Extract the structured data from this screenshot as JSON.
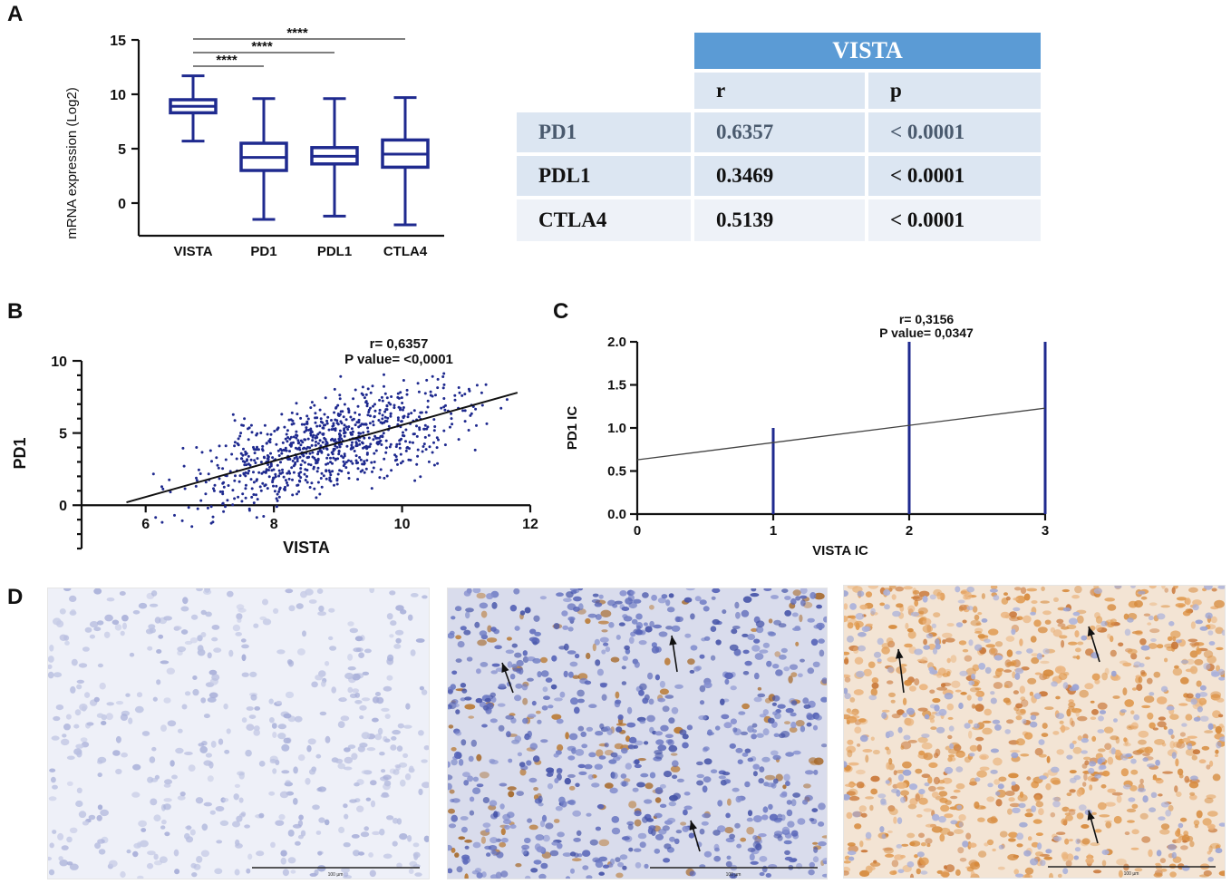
{
  "panels": {
    "a": "A",
    "b": "B",
    "c": "C",
    "d": "D"
  },
  "stats": {
    "sig_label": "****",
    "comparisons": [
      {
        "from": "VISTA",
        "to": "PD1"
      },
      {
        "from": "VISTA",
        "to": "PDL1"
      },
      {
        "from": "VISTA",
        "to": "CTLA4"
      }
    ]
  },
  "table": {
    "header": "VISTA",
    "col_r": "r",
    "col_p": "p",
    "rows": [
      {
        "name": "PD1",
        "r": "0.6357",
        "p": "< 0.0001"
      },
      {
        "name": "PDL1",
        "r": "0.3469",
        "p": "< 0.0001"
      },
      {
        "name": "CTLA4",
        "r": "0.5139",
        "p": "< 0.0001"
      }
    ]
  },
  "colors": {
    "box": "#1f2a8f",
    "dot": "#1f2a8f",
    "header_blue": "#5b9bd5",
    "row_blue": "#dce6f2"
  },
  "chart_data": [
    {
      "type": "box",
      "panel": "A",
      "ylabel": "mRNA expression (Log2)",
      "categories": [
        "VISTA",
        "PD1",
        "PDL1",
        "CTLA4"
      ],
      "ylim": [
        -3,
        15
      ],
      "yticks": [
        0,
        5,
        10,
        15
      ],
      "boxes": [
        {
          "min": 5.7,
          "q1": 8.3,
          "median": 8.9,
          "q3": 9.5,
          "max": 11.7
        },
        {
          "min": -1.5,
          "q1": 3.0,
          "median": 4.2,
          "q3": 5.5,
          "max": 9.6
        },
        {
          "min": -1.2,
          "q1": 3.6,
          "median": 4.3,
          "q3": 5.1,
          "max": 9.6
        },
        {
          "min": -2.0,
          "q1": 3.3,
          "median": 4.5,
          "q3": 5.8,
          "max": 9.7
        }
      ]
    },
    {
      "type": "scatter",
      "panel": "B",
      "xlabel": "VISTA",
      "ylabel": "PD1",
      "xlim": [
        5,
        12
      ],
      "ylim": [
        -3,
        10
      ],
      "xticks": [
        6,
        8,
        10,
        12
      ],
      "yticks": [
        0,
        5,
        10
      ],
      "annotation_r": "r= 0,6357",
      "annotation_p": "P value= <0,0001",
      "fit": {
        "x1": 5.7,
        "y1": 0.2,
        "x2": 11.8,
        "y2": 7.8
      },
      "n_points": 900
    },
    {
      "type": "bar",
      "panel": "C",
      "xlabel": "VISTA IC",
      "ylabel": "PD1 IC",
      "xlim": [
        0,
        3
      ],
      "ylim": [
        0,
        2
      ],
      "xticks": [
        "0",
        "1",
        "2",
        "3"
      ],
      "yticks": [
        "0.0",
        "0.5",
        "1.0",
        "1.5",
        "2.0"
      ],
      "annotation_r": "r= 0,3156",
      "annotation_p": "P value= 0,0347",
      "bars": [
        {
          "x": 1,
          "y": 1.0
        },
        {
          "x": 2,
          "y": 2.0
        },
        {
          "x": 3,
          "y": 2.0
        }
      ],
      "fit": {
        "x1": 0,
        "y1": 0.63,
        "x2": 3,
        "y2": 1.23
      }
    }
  ],
  "micrographs": [
    {
      "staining": "negative",
      "scale_label": "100 µm"
    },
    {
      "staining": "moderate",
      "scale_label": "100 µm"
    },
    {
      "staining": "strong",
      "scale_label": "100 µm"
    }
  ]
}
